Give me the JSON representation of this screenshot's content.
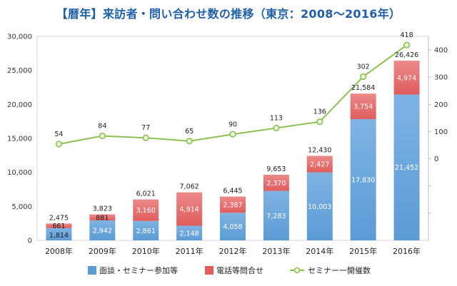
{
  "title": "【暦年】来訪者・問い合わせ数の推移（東京：2008〜2016年）",
  "legend": [
    "面談・セミナー参加等",
    "電話等問合せ",
    "セミナー一開催数"
  ],
  "colors": {
    "interview": "#5b9bd5",
    "phone": "#e05c5c",
    "seminar": "#8cc152",
    "title": "#1f5fa8"
  },
  "chart_data": {
    "type": "bar",
    "stacked": true,
    "categories": [
      "2008年",
      "2009年",
      "2010年",
      "2011年",
      "2012年",
      "2013年",
      "2014年",
      "2015年",
      "2016年"
    ],
    "series": [
      {
        "name": "面談・セミナー参加等",
        "values": [
          1814,
          2942,
          2861,
          2148,
          4058,
          7283,
          10003,
          17830,
          21452
        ]
      },
      {
        "name": "電話等問合せ",
        "values": [
          661,
          881,
          3160,
          4914,
          2387,
          2370,
          2427,
          3754,
          4974
        ]
      },
      {
        "name": "セミナー一開催数",
        "type": "line",
        "axis": "right",
        "values": [
          54,
          84,
          77,
          65,
          90,
          113,
          136,
          302,
          418
        ]
      }
    ],
    "totals": [
      2475,
      3823,
      6021,
      7062,
      6445,
      9653,
      12430,
      21584,
      26426
    ],
    "ylim": [
      0,
      30000
    ],
    "yticks": [
      0,
      5000,
      10000,
      15000,
      20000,
      25000,
      30000
    ],
    "ytick_labels": [
      "0",
      "5,000",
      "10,000",
      "15,000",
      "20,000",
      "25,000",
      "30,000"
    ],
    "y2lim": [
      -300,
      450
    ],
    "y2ticks": [
      0,
      100,
      200,
      300,
      400
    ],
    "legend_position": "bottom",
    "grid": false
  }
}
